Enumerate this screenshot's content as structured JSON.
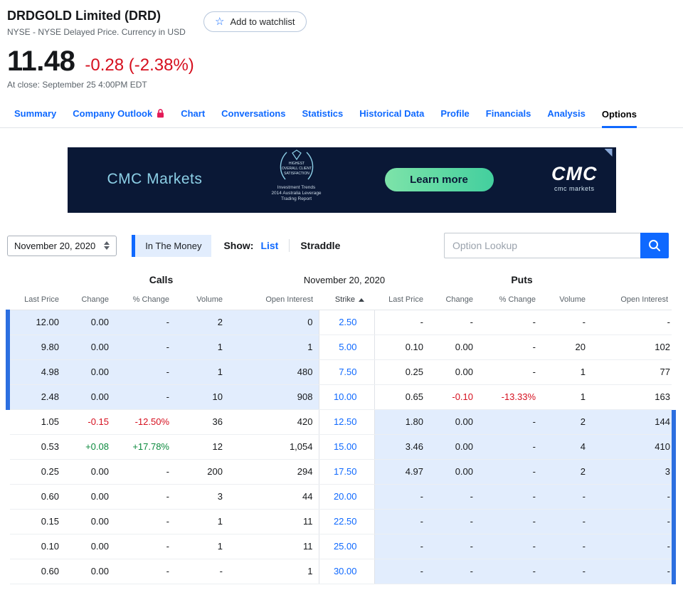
{
  "colors": {
    "accent": "#0f69ff",
    "negative": "#d6101f",
    "positive": "#0c8a3e",
    "itm_bg": "#e2edfd",
    "bar": "#2c6fe0",
    "lock": "#e31a57",
    "ad_bg": "#0a1836",
    "ad_accent": "#8ccfe6",
    "ad_btn_from": "#7de3a9",
    "ad_btn_to": "#43cf9e",
    "ad_btn_text": "#0a1836"
  },
  "header": {
    "title": "DRDGOLD Limited (DRD)",
    "subtitle": "NYSE - NYSE Delayed Price. Currency in USD",
    "watchlist_label": "Add to watchlist",
    "price": "11.48",
    "change": "-0.28 (-2.38%)",
    "at_close": "At close: September 25 4:00PM EDT"
  },
  "nav": {
    "tabs": [
      {
        "label": "Summary"
      },
      {
        "label": "Company Outlook",
        "locked": true
      },
      {
        "label": "Chart"
      },
      {
        "label": "Conversations"
      },
      {
        "label": "Statistics"
      },
      {
        "label": "Historical Data"
      },
      {
        "label": "Profile"
      },
      {
        "label": "Financials"
      },
      {
        "label": "Analysis"
      },
      {
        "label": "Options",
        "active": true
      }
    ]
  },
  "ad": {
    "brand": "CMC Markets",
    "badge_lines": [
      "HIGHEST",
      "OVERALL CLIENT",
      "SATISFACTION"
    ],
    "caption_lines": [
      "Investment Trends",
      "2014 Australia Leverage",
      "Trading Report"
    ],
    "button_label": "Learn more",
    "logo_text": "CMC",
    "logo_sub": "cmc markets"
  },
  "controls": {
    "expiration": "November 20, 2020",
    "in_the_money": "In The Money",
    "show_label": "Show:",
    "list": "List",
    "straddle": "Straddle",
    "lookup_placeholder": "Option Lookup"
  },
  "table": {
    "calls_title": "Calls",
    "date_title": "November 20, 2020",
    "puts_title": "Puts",
    "columns": [
      "Last Price",
      "Change",
      "% Change",
      "Volume",
      "Open Interest",
      "Strike",
      "Last Price",
      "Change",
      "% Change",
      "Volume",
      "Open Interest"
    ],
    "rows": [
      {
        "calls": [
          "12.00",
          "0.00",
          "-",
          "2",
          "0"
        ],
        "strike": "2.50",
        "puts": [
          "-",
          "-",
          "-",
          "-",
          "-"
        ],
        "calls_itm": true,
        "puts_itm": false
      },
      {
        "calls": [
          "9.80",
          "0.00",
          "-",
          "1",
          "1"
        ],
        "strike": "5.00",
        "puts": [
          "0.10",
          "0.00",
          "-",
          "20",
          "102"
        ],
        "calls_itm": true,
        "puts_itm": false
      },
      {
        "calls": [
          "4.98",
          "0.00",
          "-",
          "1",
          "480"
        ],
        "strike": "7.50",
        "puts": [
          "0.25",
          "0.00",
          "-",
          "1",
          "77"
        ],
        "calls_itm": true,
        "puts_itm": false
      },
      {
        "calls": [
          "2.48",
          "0.00",
          "-",
          "10",
          "908"
        ],
        "strike": "10.00",
        "puts": [
          "0.65",
          "-0.10",
          "-13.33%",
          "1",
          "163"
        ],
        "calls_itm": true,
        "puts_itm": false
      },
      {
        "calls": [
          "1.05",
          "-0.15",
          "-12.50%",
          "36",
          "420"
        ],
        "strike": "12.50",
        "puts": [
          "1.80",
          "0.00",
          "-",
          "2",
          "144"
        ],
        "calls_itm": false,
        "puts_itm": true
      },
      {
        "calls": [
          "0.53",
          "+0.08",
          "+17.78%",
          "12",
          "1,054"
        ],
        "strike": "15.00",
        "puts": [
          "3.46",
          "0.00",
          "-",
          "4",
          "410"
        ],
        "calls_itm": false,
        "puts_itm": true
      },
      {
        "calls": [
          "0.25",
          "0.00",
          "-",
          "200",
          "294"
        ],
        "strike": "17.50",
        "puts": [
          "4.97",
          "0.00",
          "-",
          "2",
          "3"
        ],
        "calls_itm": false,
        "puts_itm": true
      },
      {
        "calls": [
          "0.60",
          "0.00",
          "-",
          "3",
          "44"
        ],
        "strike": "20.00",
        "puts": [
          "-",
          "-",
          "-",
          "-",
          "-"
        ],
        "calls_itm": false,
        "puts_itm": true
      },
      {
        "calls": [
          "0.15",
          "0.00",
          "-",
          "1",
          "11"
        ],
        "strike": "22.50",
        "puts": [
          "-",
          "-",
          "-",
          "-",
          "-"
        ],
        "calls_itm": false,
        "puts_itm": true
      },
      {
        "calls": [
          "0.10",
          "0.00",
          "-",
          "1",
          "11"
        ],
        "strike": "25.00",
        "puts": [
          "-",
          "-",
          "-",
          "-",
          "-"
        ],
        "calls_itm": false,
        "puts_itm": true
      },
      {
        "calls": [
          "0.60",
          "0.00",
          "-",
          "-",
          "1"
        ],
        "strike": "30.00",
        "puts": [
          "-",
          "-",
          "-",
          "-",
          "-"
        ],
        "calls_itm": false,
        "puts_itm": true
      }
    ]
  }
}
